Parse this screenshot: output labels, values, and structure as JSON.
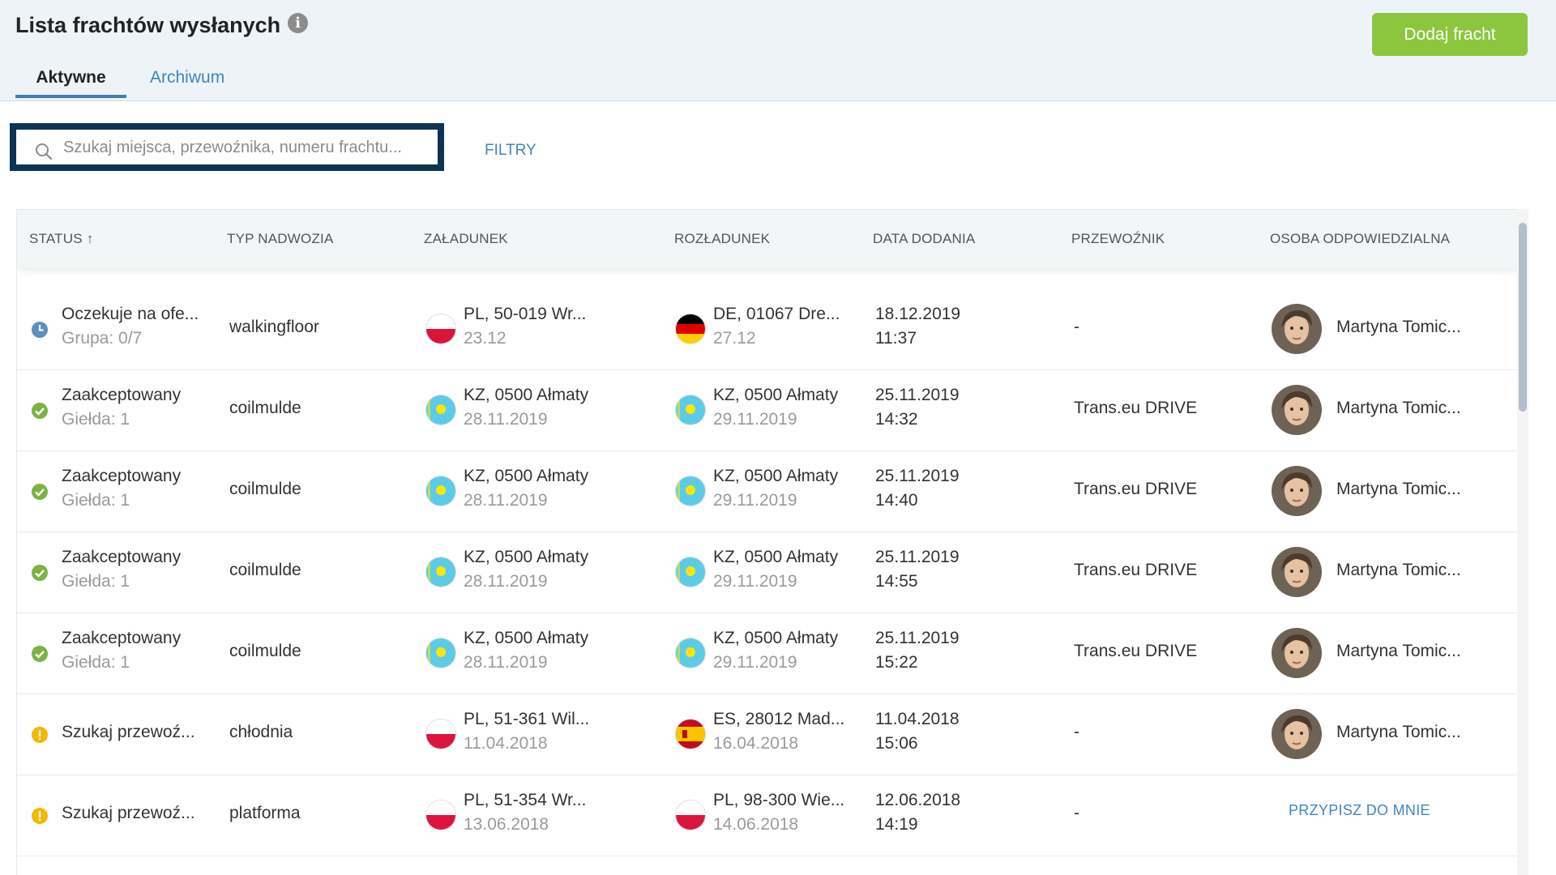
{
  "page": {
    "title": "Lista frachtów wysłanych",
    "add_button": "Dodaj fracht"
  },
  "tabs": [
    {
      "label": "Aktywne",
      "active": true
    },
    {
      "label": "Archiwum",
      "active": false
    }
  ],
  "search": {
    "placeholder": "Szukaj miejsca, przewoźnika, numeru frachtu...",
    "value": ""
  },
  "filters_label": "FILTRY",
  "table": {
    "columns": [
      "STATUS",
      "TYP NADWOZIA",
      "ZAŁADUNEK",
      "ROZŁADUNEK",
      "DATA DODANIA",
      "PRZEWOŹNIK",
      "OSOBA ODPOWIEDZIALNA"
    ],
    "sort_indicator": "↑",
    "rows": [
      {
        "status": "Oczekuje na ofe...",
        "status_sub": "Grupa: 0/7",
        "status_type": "pending",
        "body": "walkingfloor",
        "load_flag": "PL",
        "load_place": "PL, 50-019 Wr...",
        "load_date": "23.12",
        "unload_flag": "DE",
        "unload_place": "DE, 01067 Dre...",
        "unload_date": "27.12",
        "added_date": "18.12.2019",
        "added_time": "11:37",
        "carrier": "-",
        "person": "Martyna Tomic..."
      },
      {
        "status": "Zaakceptowany",
        "status_sub": "Giełda: 1",
        "status_type": "accepted",
        "body": "coilmulde",
        "load_flag": "KZ",
        "load_place": "KZ, 0500 Ałmaty",
        "load_date": "28.11.2019",
        "unload_flag": "KZ",
        "unload_place": "KZ, 0500 Ałmaty",
        "unload_date": "29.11.2019",
        "added_date": "25.11.2019",
        "added_time": "14:32",
        "carrier": "Trans.eu DRIVE",
        "person": "Martyna Tomic..."
      },
      {
        "status": "Zaakceptowany",
        "status_sub": "Giełda: 1",
        "status_type": "accepted",
        "body": "coilmulde",
        "load_flag": "KZ",
        "load_place": "KZ, 0500 Ałmaty",
        "load_date": "28.11.2019",
        "unload_flag": "KZ",
        "unload_place": "KZ, 0500 Ałmaty",
        "unload_date": "29.11.2019",
        "added_date": "25.11.2019",
        "added_time": "14:40",
        "carrier": "Trans.eu DRIVE",
        "person": "Martyna Tomic..."
      },
      {
        "status": "Zaakceptowany",
        "status_sub": "Giełda: 1",
        "status_type": "accepted",
        "body": "coilmulde",
        "load_flag": "KZ",
        "load_place": "KZ, 0500 Ałmaty",
        "load_date": "28.11.2019",
        "unload_flag": "KZ",
        "unload_place": "KZ, 0500 Ałmaty",
        "unload_date": "29.11.2019",
        "added_date": "25.11.2019",
        "added_time": "14:55",
        "carrier": "Trans.eu DRIVE",
        "person": "Martyna Tomic..."
      },
      {
        "status": "Zaakceptowany",
        "status_sub": "Giełda: 1",
        "status_type": "accepted",
        "body": "coilmulde",
        "load_flag": "KZ",
        "load_place": "KZ, 0500 Ałmaty",
        "load_date": "28.11.2019",
        "unload_flag": "KZ",
        "unload_place": "KZ, 0500 Ałmaty",
        "unload_date": "29.11.2019",
        "added_date": "25.11.2019",
        "added_time": "15:22",
        "carrier": "Trans.eu DRIVE",
        "person": "Martyna Tomic..."
      },
      {
        "status": "Szukaj przewoź...",
        "status_sub": "",
        "status_type": "warning",
        "body": "chłodnia",
        "load_flag": "PL",
        "load_place": "PL, 51-361 Wil...",
        "load_date": "11.04.2018",
        "unload_flag": "ES",
        "unload_place": "ES, 28012 Mad...",
        "unload_date": "16.04.2018",
        "added_date": "11.04.2018",
        "added_time": "15:06",
        "carrier": "-",
        "person": "Martyna Tomic..."
      },
      {
        "status": "Szukaj przewoź...",
        "status_sub": "",
        "status_type": "warning",
        "body": "platforma",
        "load_flag": "PL",
        "load_place": "PL, 51-354 Wr...",
        "load_date": "13.06.2018",
        "unload_flag": "PL",
        "unload_place": "PL, 98-300 Wie...",
        "unload_date": "14.06.2018",
        "added_date": "12.06.2018",
        "added_time": "14:19",
        "carrier": "-",
        "person": "",
        "assign_label": "PRZYPISZ DO MNIE"
      }
    ]
  },
  "colors": {
    "accent": "#3f86c4",
    "add_button": "#8cc63f",
    "accepted": "#7cb342",
    "warning": "#f5b800",
    "pending": "#5b8fc4"
  }
}
